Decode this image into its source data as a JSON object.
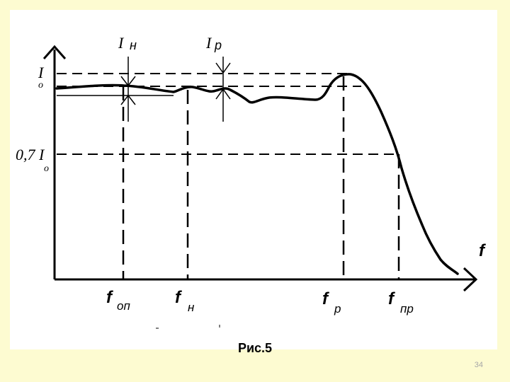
{
  "slide": {
    "background_color": "#fdfbd1",
    "panel_color": "#ffffff",
    "caption": "Рис.5",
    "slide_number": "34"
  },
  "diagram": {
    "y_axis_labels": {
      "io_main": "I",
      "io_sub": "o",
      "level07_main": "0,7 I",
      "level07_sub": "o"
    },
    "x_axis_label": "f",
    "top_labels": [
      {
        "main": "I",
        "sub": "н"
      },
      {
        "main": "I",
        "sub": "р"
      }
    ],
    "freq_labels": [
      {
        "main": "f",
        "sub": "оп"
      },
      {
        "main": "f",
        "sub": "н"
      },
      {
        "main": "f",
        "sub": "р"
      },
      {
        "main": "f",
        "sub": "пр"
      }
    ]
  }
}
